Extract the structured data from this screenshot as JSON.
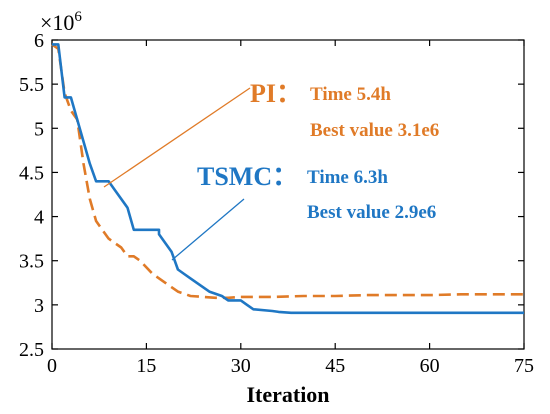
{
  "chart_data": {
    "type": "line",
    "title": "",
    "xlabel": "Iteration",
    "ylabel": "",
    "xlim": [
      0,
      75
    ],
    "ylim": [
      2.5,
      6
    ],
    "y_exponent_label": {
      "base": "×10",
      "exp": "6"
    },
    "x_ticks": [
      0,
      15,
      30,
      45,
      60,
      75
    ],
    "y_ticks": [
      2.5,
      3,
      3.5,
      4,
      4.5,
      5,
      5.5,
      6
    ],
    "y_tick_labels": [
      "2.5",
      "3",
      "3.5",
      "4",
      "4.5",
      "5",
      "5.5",
      "6"
    ],
    "grid": false,
    "series": [
      {
        "name": "PI",
        "color": "#e07b28",
        "style": "dashed",
        "x": [
          0,
          1,
          2,
          3,
          4,
          5,
          6,
          7,
          8,
          9,
          10,
          11,
          12,
          13,
          14,
          16,
          18,
          20,
          22,
          24,
          26,
          28,
          30,
          35,
          40,
          45,
          50,
          55,
          60,
          65,
          70,
          75
        ],
        "y": [
          5.95,
          5.9,
          5.4,
          5.2,
          5.1,
          4.6,
          4.2,
          3.95,
          3.85,
          3.75,
          3.7,
          3.65,
          3.55,
          3.55,
          3.5,
          3.35,
          3.25,
          3.15,
          3.1,
          3.09,
          3.08,
          3.08,
          3.09,
          3.09,
          3.1,
          3.1,
          3.11,
          3.11,
          3.11,
          3.12,
          3.12,
          3.12
        ]
      },
      {
        "name": "TSMC",
        "color": "#1f77c4",
        "style": "solid",
        "x": [
          0,
          1,
          2,
          2,
          3,
          3,
          4,
          5,
          6,
          7,
          7,
          9,
          9,
          10,
          12,
          13,
          15,
          17,
          17,
          19,
          20,
          21,
          22,
          25,
          25,
          27,
          28,
          30,
          31,
          32,
          35,
          36,
          38,
          40,
          75
        ],
        "y": [
          5.95,
          5.95,
          5.35,
          5.35,
          5.35,
          5.35,
          5.1,
          4.85,
          4.6,
          4.4,
          4.4,
          4.4,
          4.4,
          4.3,
          4.1,
          3.85,
          3.85,
          3.85,
          3.8,
          3.6,
          3.4,
          3.35,
          3.3,
          3.15,
          3.15,
          3.1,
          3.05,
          3.05,
          3.0,
          2.95,
          2.93,
          2.92,
          2.91,
          2.91,
          2.91
        ]
      }
    ],
    "annotations": [
      {
        "label": "PI：",
        "color": "#e07b28",
        "lines": [
          "Time   5.4h",
          "Best value   3.1e6"
        ]
      },
      {
        "label": "TSMC：",
        "color": "#1f77c4",
        "lines": [
          "Time   6.3h",
          "Best value   2.9e6"
        ]
      }
    ]
  }
}
